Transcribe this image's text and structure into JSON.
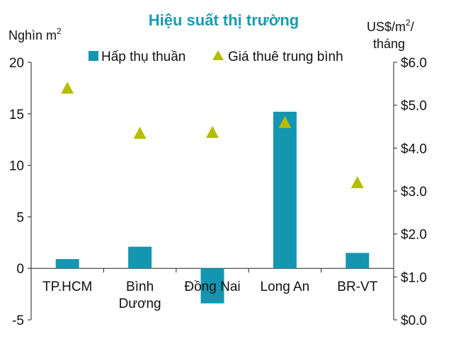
{
  "chart_data": {
    "type": "bar",
    "title": "Hiệu suất thị trường",
    "categories": [
      [
        "TP.HCM"
      ],
      [
        "Bình",
        "Dương"
      ],
      [
        "Đồng Nai"
      ],
      [
        "Long An"
      ],
      [
        "BR-VT"
      ]
    ],
    "y_left": {
      "label_main": "Nghìn m",
      "label_sup": "2",
      "ylim": [
        -5,
        20
      ],
      "ticks": [
        -5,
        0,
        5,
        10,
        15,
        20
      ],
      "tick_labels": [
        "-5",
        "0",
        "5",
        "10",
        "15",
        "20"
      ]
    },
    "y_right": {
      "label_line1_main": "US$/m",
      "label_line1_sup": "2",
      "label_line1_end": "/",
      "label_line2": "tháng",
      "ylim": [
        0,
        6
      ],
      "ticks": [
        0,
        1,
        2,
        3,
        4,
        5,
        6
      ],
      "tick_labels": [
        "$0.0",
        "$1.0",
        "$2.0",
        "$3.0",
        "$4.0",
        "$5.0",
        "$6.0"
      ]
    },
    "series": [
      {
        "name": "Hấp thụ thuần",
        "type": "bar",
        "axis": "left",
        "color": "#1496b0",
        "values": [
          0.9,
          2.1,
          -3.4,
          15.2,
          1.5
        ]
      },
      {
        "name": "Giá thuê trung bình",
        "type": "scatter",
        "marker": "triangle",
        "axis": "right",
        "color": "#b5bd00",
        "values": [
          5.4,
          4.35,
          4.37,
          4.6,
          3.2
        ]
      }
    ],
    "legend_position": "top",
    "grid": false
  }
}
